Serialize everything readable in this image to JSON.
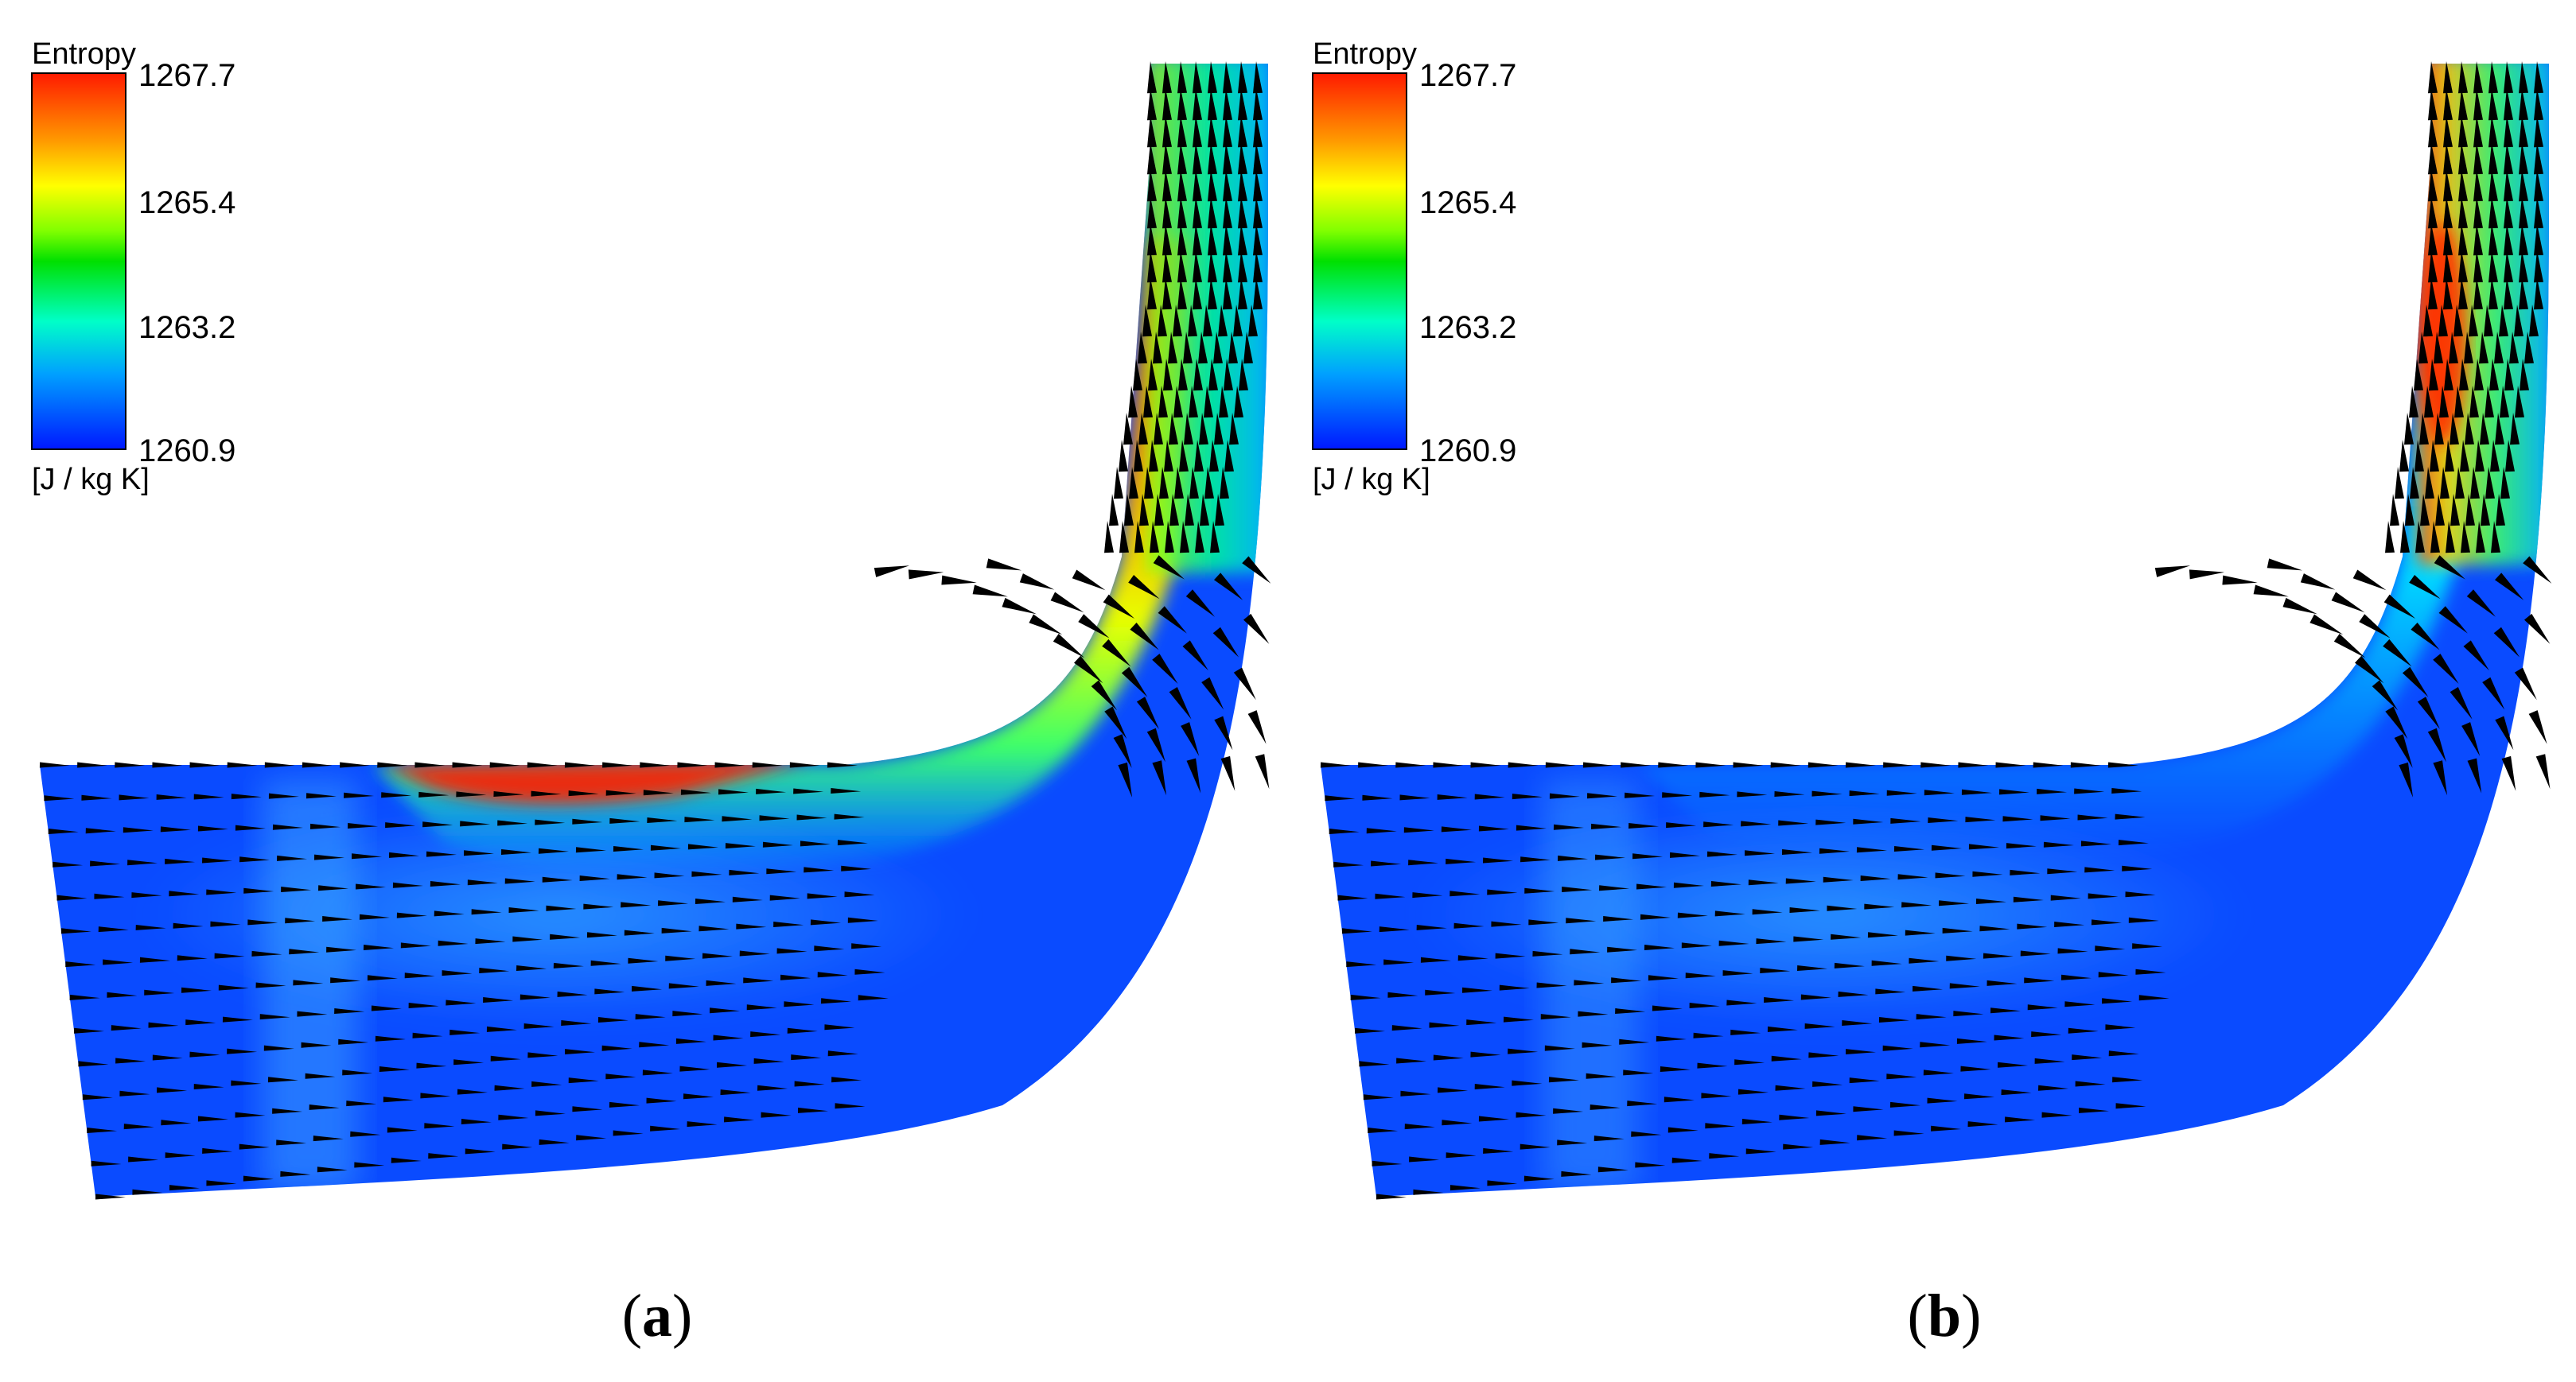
{
  "panels": [
    {
      "id": "a",
      "colorbar": {
        "title": "Entropy",
        "unit": "[J / kg K]",
        "ticks": [
          "1267.7",
          "1265.4",
          "1263.2",
          "1260.9"
        ]
      },
      "caption_letter": "a",
      "hotspot": "high entropy band along shroud, 1266–1267.7"
    },
    {
      "id": "b",
      "colorbar": {
        "title": "Entropy",
        "unit": "[J / kg K]",
        "ticks": [
          "1267.7",
          "1265.4",
          "1263.2",
          "1260.9"
        ]
      },
      "caption_letter": "b",
      "hotspot": "high entropy near outlet shroud, moderate band along shroud"
    }
  ],
  "colors": {
    "scale_top": "#ff0000",
    "scale_q1": "#ffd000",
    "scale_mid_green": "#00e000",
    "scale_q2": "#00ffd0",
    "scale_bottom": "#0000ff",
    "field_base": "#0a4bff",
    "arrow": "#000000"
  },
  "caption_open": "(",
  "caption_close": ")"
}
